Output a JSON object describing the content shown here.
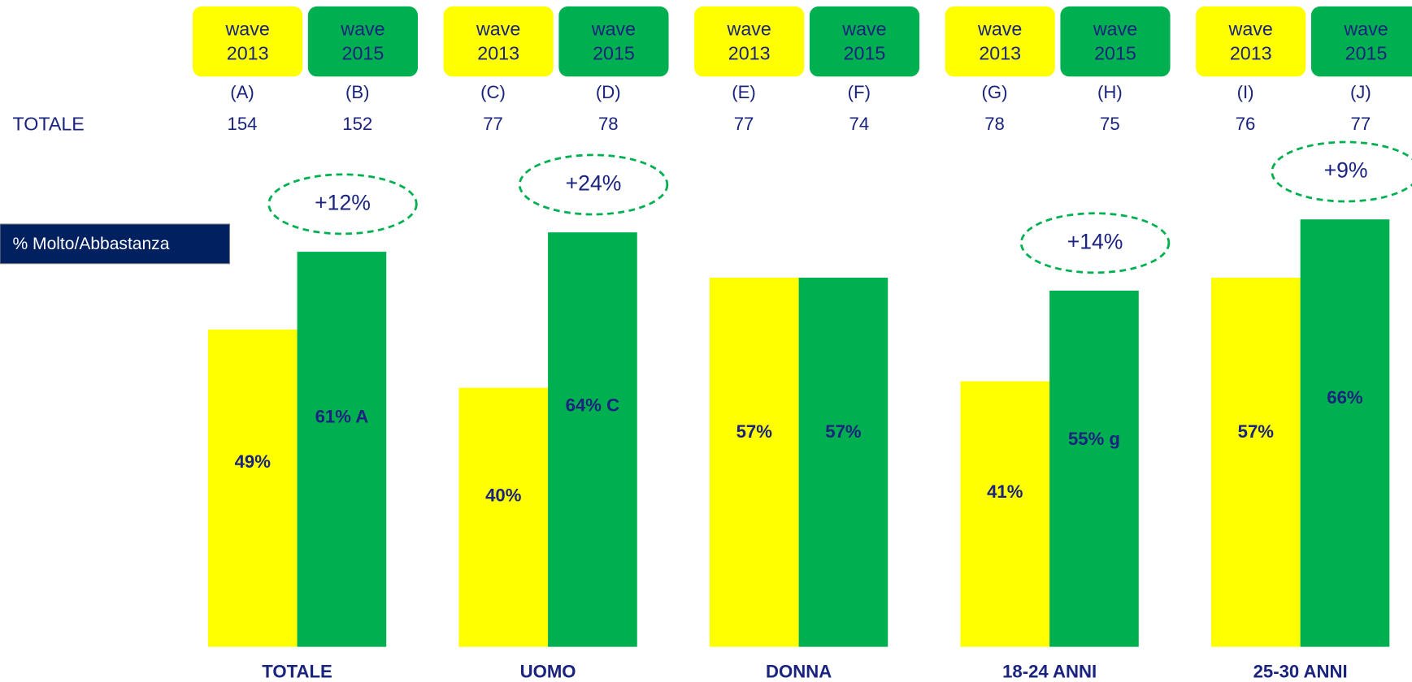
{
  "chart_data": {
    "type": "bar",
    "categories": [
      "TOTALE",
      "UOMO",
      "DONNA",
      "18-24 ANNI",
      "25-30 ANNI"
    ],
    "series": [
      {
        "name": "wave 2013",
        "color": "#ffff00",
        "values": [
          49,
          40,
          57,
          41,
          57
        ],
        "value_labels": [
          "49%",
          "40%",
          "57%",
          "41%",
          "57%"
        ]
      },
      {
        "name": "wave 2015",
        "color": "#00b050",
        "values": [
          61,
          64,
          57,
          55,
          66
        ],
        "value_labels": [
          "61% A",
          "64% C",
          "57%",
          "55% g",
          "66%"
        ]
      }
    ],
    "column_letters": [
      "(A)",
      "(B)",
      "(C)",
      "(D)",
      "(E)",
      "(F)",
      "(G)",
      "(H)",
      "(I)",
      "(J)"
    ],
    "base_label": "TOTALE",
    "base_counts": [
      154,
      152,
      77,
      78,
      77,
      74,
      78,
      75,
      76,
      77
    ],
    "annotations": [
      "+12%",
      "+24%",
      null,
      "+14%",
      "+9%"
    ],
    "measure_label": "% Molto/Abbastanza"
  }
}
